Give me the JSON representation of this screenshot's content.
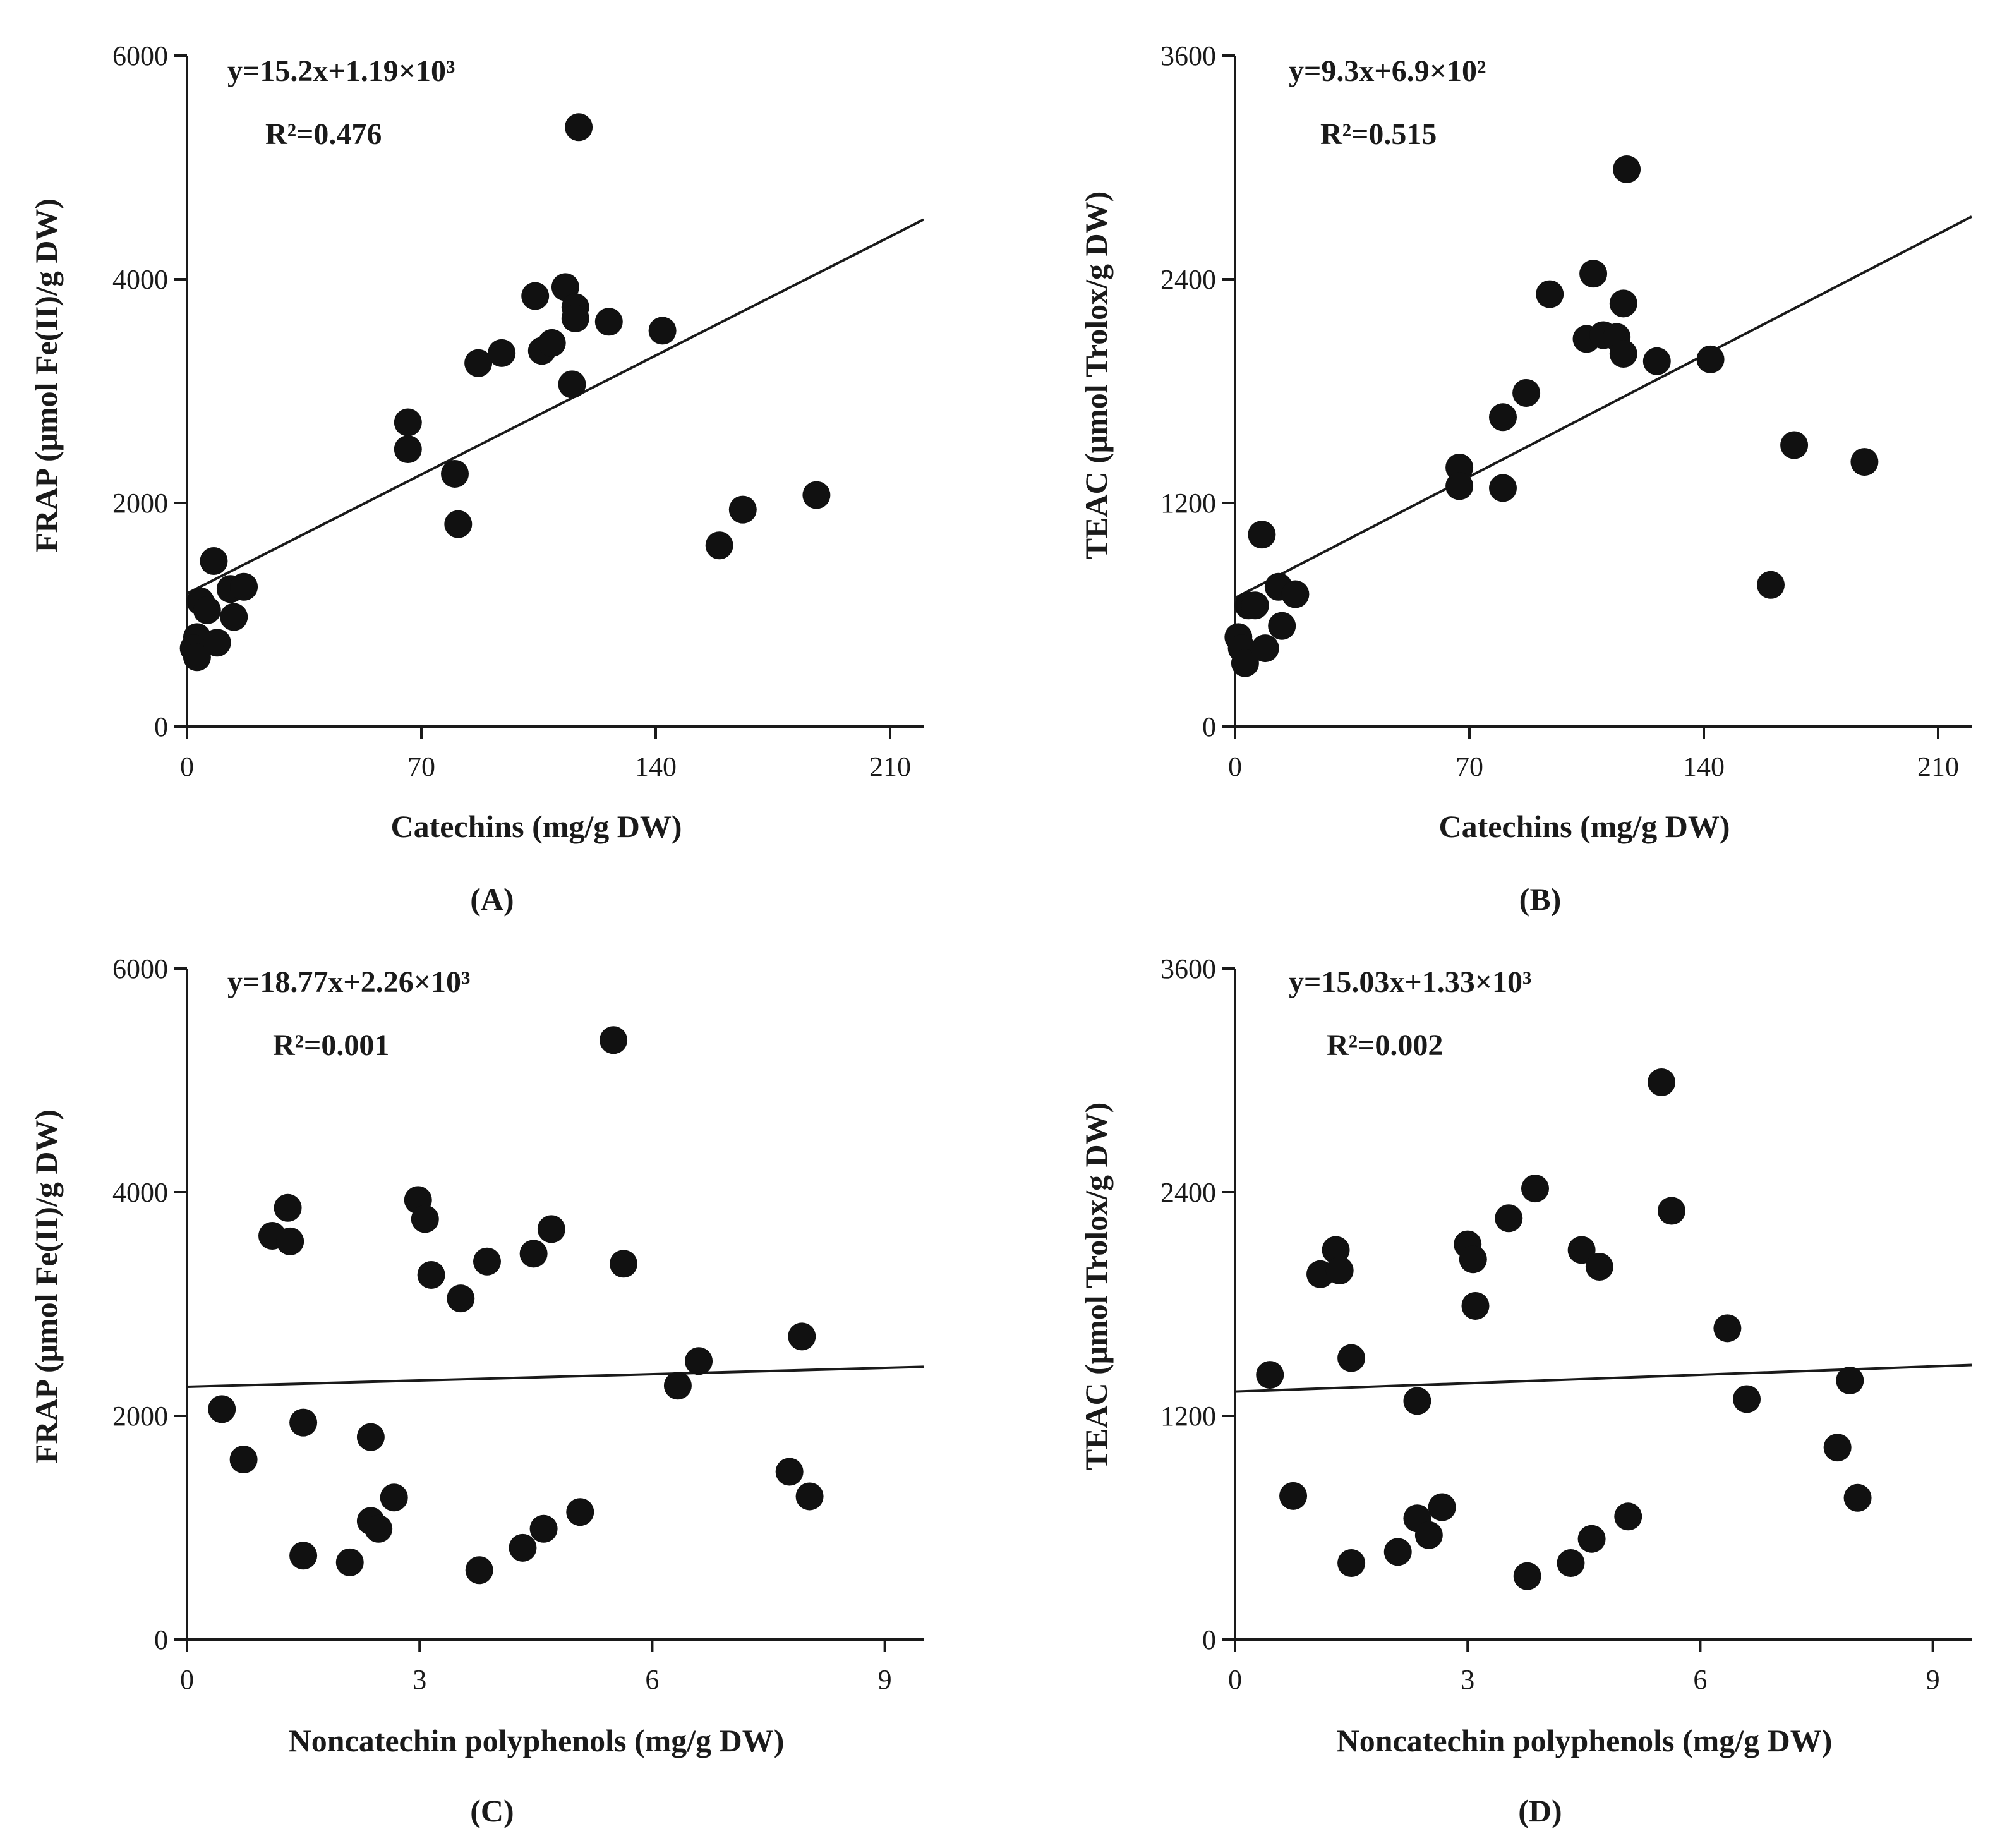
{
  "chart_data": [
    {
      "panel": "(A)",
      "type": "scatter",
      "xlabel": "Catechins (mg/g DW)",
      "ylabel": "FRAP (μmol Fe(II)/g DW)",
      "xlim": [
        0,
        220
      ],
      "ylim": [
        0,
        6000
      ],
      "xticks": [
        0,
        70,
        140,
        210
      ],
      "yticks": [
        0,
        2000,
        4000,
        6000
      ],
      "equation": "y=15.2x+1.19×10³",
      "r2": "R²=0.476",
      "fit": {
        "slope": 15.2,
        "intercept": 1190
      },
      "points": [
        {
          "x": 3,
          "y": 800
        },
        {
          "x": 2,
          "y": 700
        },
        {
          "x": 3,
          "y": 620
        },
        {
          "x": 4,
          "y": 1120
        },
        {
          "x": 6,
          "y": 1040
        },
        {
          "x": 8,
          "y": 1480
        },
        {
          "x": 9,
          "y": 750
        },
        {
          "x": 13,
          "y": 1230
        },
        {
          "x": 14,
          "y": 980
        },
        {
          "x": 17,
          "y": 1250
        },
        {
          "x": 66,
          "y": 2720
        },
        {
          "x": 66,
          "y": 2480
        },
        {
          "x": 80,
          "y": 2260
        },
        {
          "x": 81,
          "y": 1810
        },
        {
          "x": 87,
          "y": 3250
        },
        {
          "x": 94,
          "y": 3340
        },
        {
          "x": 104,
          "y": 3850
        },
        {
          "x": 106,
          "y": 3360
        },
        {
          "x": 109,
          "y": 3430
        },
        {
          "x": 113,
          "y": 3930
        },
        {
          "x": 115,
          "y": 3060
        },
        {
          "x": 116,
          "y": 3750
        },
        {
          "x": 116,
          "y": 3650
        },
        {
          "x": 117,
          "y": 5360
        },
        {
          "x": 126,
          "y": 3620
        },
        {
          "x": 142,
          "y": 3540
        },
        {
          "x": 159,
          "y": 1620
        },
        {
          "x": 166,
          "y": 1940
        },
        {
          "x": 188,
          "y": 2070
        }
      ]
    },
    {
      "panel": "(B)",
      "type": "scatter",
      "xlabel": "Catechins (mg/g DW)",
      "ylabel": "TEAC (μmol Trolox/g DW)",
      "xlim": [
        0,
        220
      ],
      "ylim": [
        0,
        3600
      ],
      "xticks": [
        0,
        70,
        140,
        210
      ],
      "yticks": [
        0,
        1200,
        2400,
        3600
      ],
      "equation": "y=9.3x+6.9×10²",
      "r2": "R²=0.515",
      "fit": {
        "slope": 9.3,
        "intercept": 690
      },
      "points": [
        {
          "x": 1,
          "y": 480
        },
        {
          "x": 2,
          "y": 420
        },
        {
          "x": 3,
          "y": 340
        },
        {
          "x": 4,
          "y": 650
        },
        {
          "x": 6,
          "y": 650
        },
        {
          "x": 8,
          "y": 1030
        },
        {
          "x": 9,
          "y": 420
        },
        {
          "x": 13,
          "y": 750
        },
        {
          "x": 14,
          "y": 540
        },
        {
          "x": 18,
          "y": 710
        },
        {
          "x": 67,
          "y": 1390
        },
        {
          "x": 67,
          "y": 1290
        },
        {
          "x": 80,
          "y": 1660
        },
        {
          "x": 80,
          "y": 1280
        },
        {
          "x": 87,
          "y": 1790
        },
        {
          "x": 94,
          "y": 2320
        },
        {
          "x": 105,
          "y": 2080
        },
        {
          "x": 107,
          "y": 2430
        },
        {
          "x": 110,
          "y": 2100
        },
        {
          "x": 114,
          "y": 2090
        },
        {
          "x": 116,
          "y": 2270
        },
        {
          "x": 116,
          "y": 2000
        },
        {
          "x": 117,
          "y": 2990
        },
        {
          "x": 126,
          "y": 1960
        },
        {
          "x": 142,
          "y": 1970
        },
        {
          "x": 160,
          "y": 760
        },
        {
          "x": 167,
          "y": 1510
        },
        {
          "x": 188,
          "y": 1420
        }
      ]
    },
    {
      "panel": "(C)",
      "type": "scatter",
      "xlabel": "Noncatechin polyphenols (mg/g DW)",
      "ylabel": "FRAP (μmol Fe(II)/g DW)",
      "xlim": [
        0,
        9.5
      ],
      "ylim": [
        0,
        6000
      ],
      "xticks": [
        0,
        3,
        6,
        9
      ],
      "yticks": [
        0,
        2000,
        4000,
        6000
      ],
      "equation": "y=18.77x+2.26×10³",
      "r2": "R²=0.001",
      "fit": {
        "slope": 18.77,
        "intercept": 2260
      },
      "points": [
        {
          "x": 0.45,
          "y": 2060
        },
        {
          "x": 0.73,
          "y": 1610
        },
        {
          "x": 1.1,
          "y": 3610
        },
        {
          "x": 1.3,
          "y": 3860
        },
        {
          "x": 1.33,
          "y": 3560
        },
        {
          "x": 1.5,
          "y": 1940
        },
        {
          "x": 1.5,
          "y": 750
        },
        {
          "x": 2.1,
          "y": 690
        },
        {
          "x": 2.37,
          "y": 1810
        },
        {
          "x": 2.37,
          "y": 1060
        },
        {
          "x": 2.47,
          "y": 990
        },
        {
          "x": 2.67,
          "y": 1270
        },
        {
          "x": 2.98,
          "y": 3930
        },
        {
          "x": 3.07,
          "y": 3760
        },
        {
          "x": 3.15,
          "y": 3260
        },
        {
          "x": 3.53,
          "y": 3050
        },
        {
          "x": 3.77,
          "y": 620
        },
        {
          "x": 3.87,
          "y": 3380
        },
        {
          "x": 4.33,
          "y": 820
        },
        {
          "x": 4.47,
          "y": 3450
        },
        {
          "x": 4.6,
          "y": 990
        },
        {
          "x": 4.7,
          "y": 3670
        },
        {
          "x": 5.07,
          "y": 1140
        },
        {
          "x": 5.5,
          "y": 5360
        },
        {
          "x": 5.63,
          "y": 3360
        },
        {
          "x": 6.33,
          "y": 2270
        },
        {
          "x": 6.6,
          "y": 2490
        },
        {
          "x": 7.77,
          "y": 1500
        },
        {
          "x": 7.93,
          "y": 2710
        },
        {
          "x": 8.03,
          "y": 1280
        }
      ]
    },
    {
      "panel": "(D)",
      "type": "scatter",
      "xlabel": "Noncatechin polyphenols (mg/g DW)",
      "ylabel": "TEAC (μmol Trolox/g DW)",
      "xlim": [
        0,
        9.5
      ],
      "ylim": [
        0,
        3600
      ],
      "xticks": [
        0,
        3,
        6,
        9
      ],
      "yticks": [
        0,
        1200,
        2400,
        3600
      ],
      "equation": "y=15.03x+1.33×10³",
      "r2": "R²=0.002",
      "fit": {
        "slope": 15.03,
        "intercept": 1330
      },
      "points": [
        {
          "x": 0.45,
          "y": 1420
        },
        {
          "x": 0.75,
          "y": 770
        },
        {
          "x": 1.1,
          "y": 1960
        },
        {
          "x": 1.3,
          "y": 2090
        },
        {
          "x": 1.35,
          "y": 1980
        },
        {
          "x": 1.5,
          "y": 1510
        },
        {
          "x": 1.5,
          "y": 410
        },
        {
          "x": 2.1,
          "y": 470
        },
        {
          "x": 2.35,
          "y": 1280
        },
        {
          "x": 2.35,
          "y": 650
        },
        {
          "x": 2.5,
          "y": 560
        },
        {
          "x": 2.67,
          "y": 710
        },
        {
          "x": 3.0,
          "y": 2120
        },
        {
          "x": 3.07,
          "y": 2040
        },
        {
          "x": 3.1,
          "y": 1790
        },
        {
          "x": 3.53,
          "y": 2260
        },
        {
          "x": 3.77,
          "y": 340
        },
        {
          "x": 3.87,
          "y": 2420
        },
        {
          "x": 4.33,
          "y": 410
        },
        {
          "x": 4.47,
          "y": 2090
        },
        {
          "x": 4.6,
          "y": 540
        },
        {
          "x": 4.7,
          "y": 2000
        },
        {
          "x": 5.07,
          "y": 660
        },
        {
          "x": 5.5,
          "y": 2990
        },
        {
          "x": 5.63,
          "y": 2300
        },
        {
          "x": 6.35,
          "y": 1670
        },
        {
          "x": 6.6,
          "y": 1290
        },
        {
          "x": 7.77,
          "y": 1030
        },
        {
          "x": 7.93,
          "y": 1390
        },
        {
          "x": 8.03,
          "y": 760
        }
      ]
    }
  ]
}
